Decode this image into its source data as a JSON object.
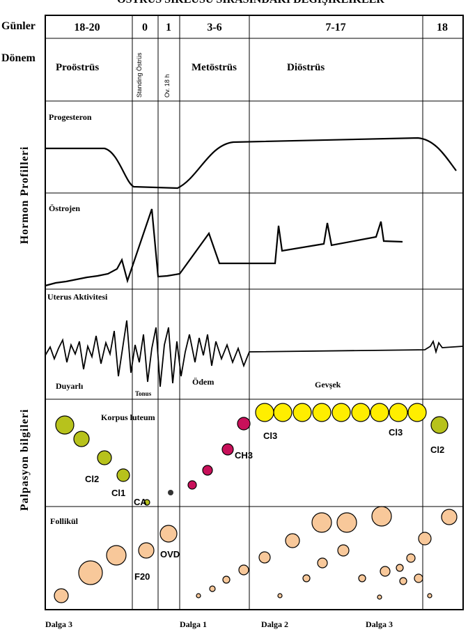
{
  "title": "ÖSTRUS SİKLUSU SIRASINDAKİ DEĞİŞİKLİKLER",
  "row_labels": {
    "days": "Günler",
    "period": "Dönem"
  },
  "side_labels": [
    "Hormon Profilleri",
    "Palpasyon bilgileri"
  ],
  "days": [
    "18-20",
    "0",
    "1",
    "3-6",
    "7-17",
    "18"
  ],
  "periods": [
    "Proöstrüs",
    "Standing Östrüs",
    "Ov. 18 h",
    "Metöstrüs",
    "Diöstrüs"
  ],
  "panels": [
    "Progesteron",
    "Östrojen",
    "Uterus Aktivitesi",
    "Korpus luteum",
    "Follikül"
  ],
  "uterus_notes": [
    "Duyarlı",
    "Tonus",
    "Ödem",
    "Gevşek"
  ],
  "corpus_labels": [
    "Cl2",
    "Cl1",
    "CA",
    "CH3",
    "Cl3",
    "Cl3",
    "Cl2"
  ],
  "follicle_labels": [
    "F20",
    "OVD"
  ],
  "waves": [
    "Dalga 3",
    "Dalga 1",
    "Dalga 2",
    "Dalga 3"
  ]
}
